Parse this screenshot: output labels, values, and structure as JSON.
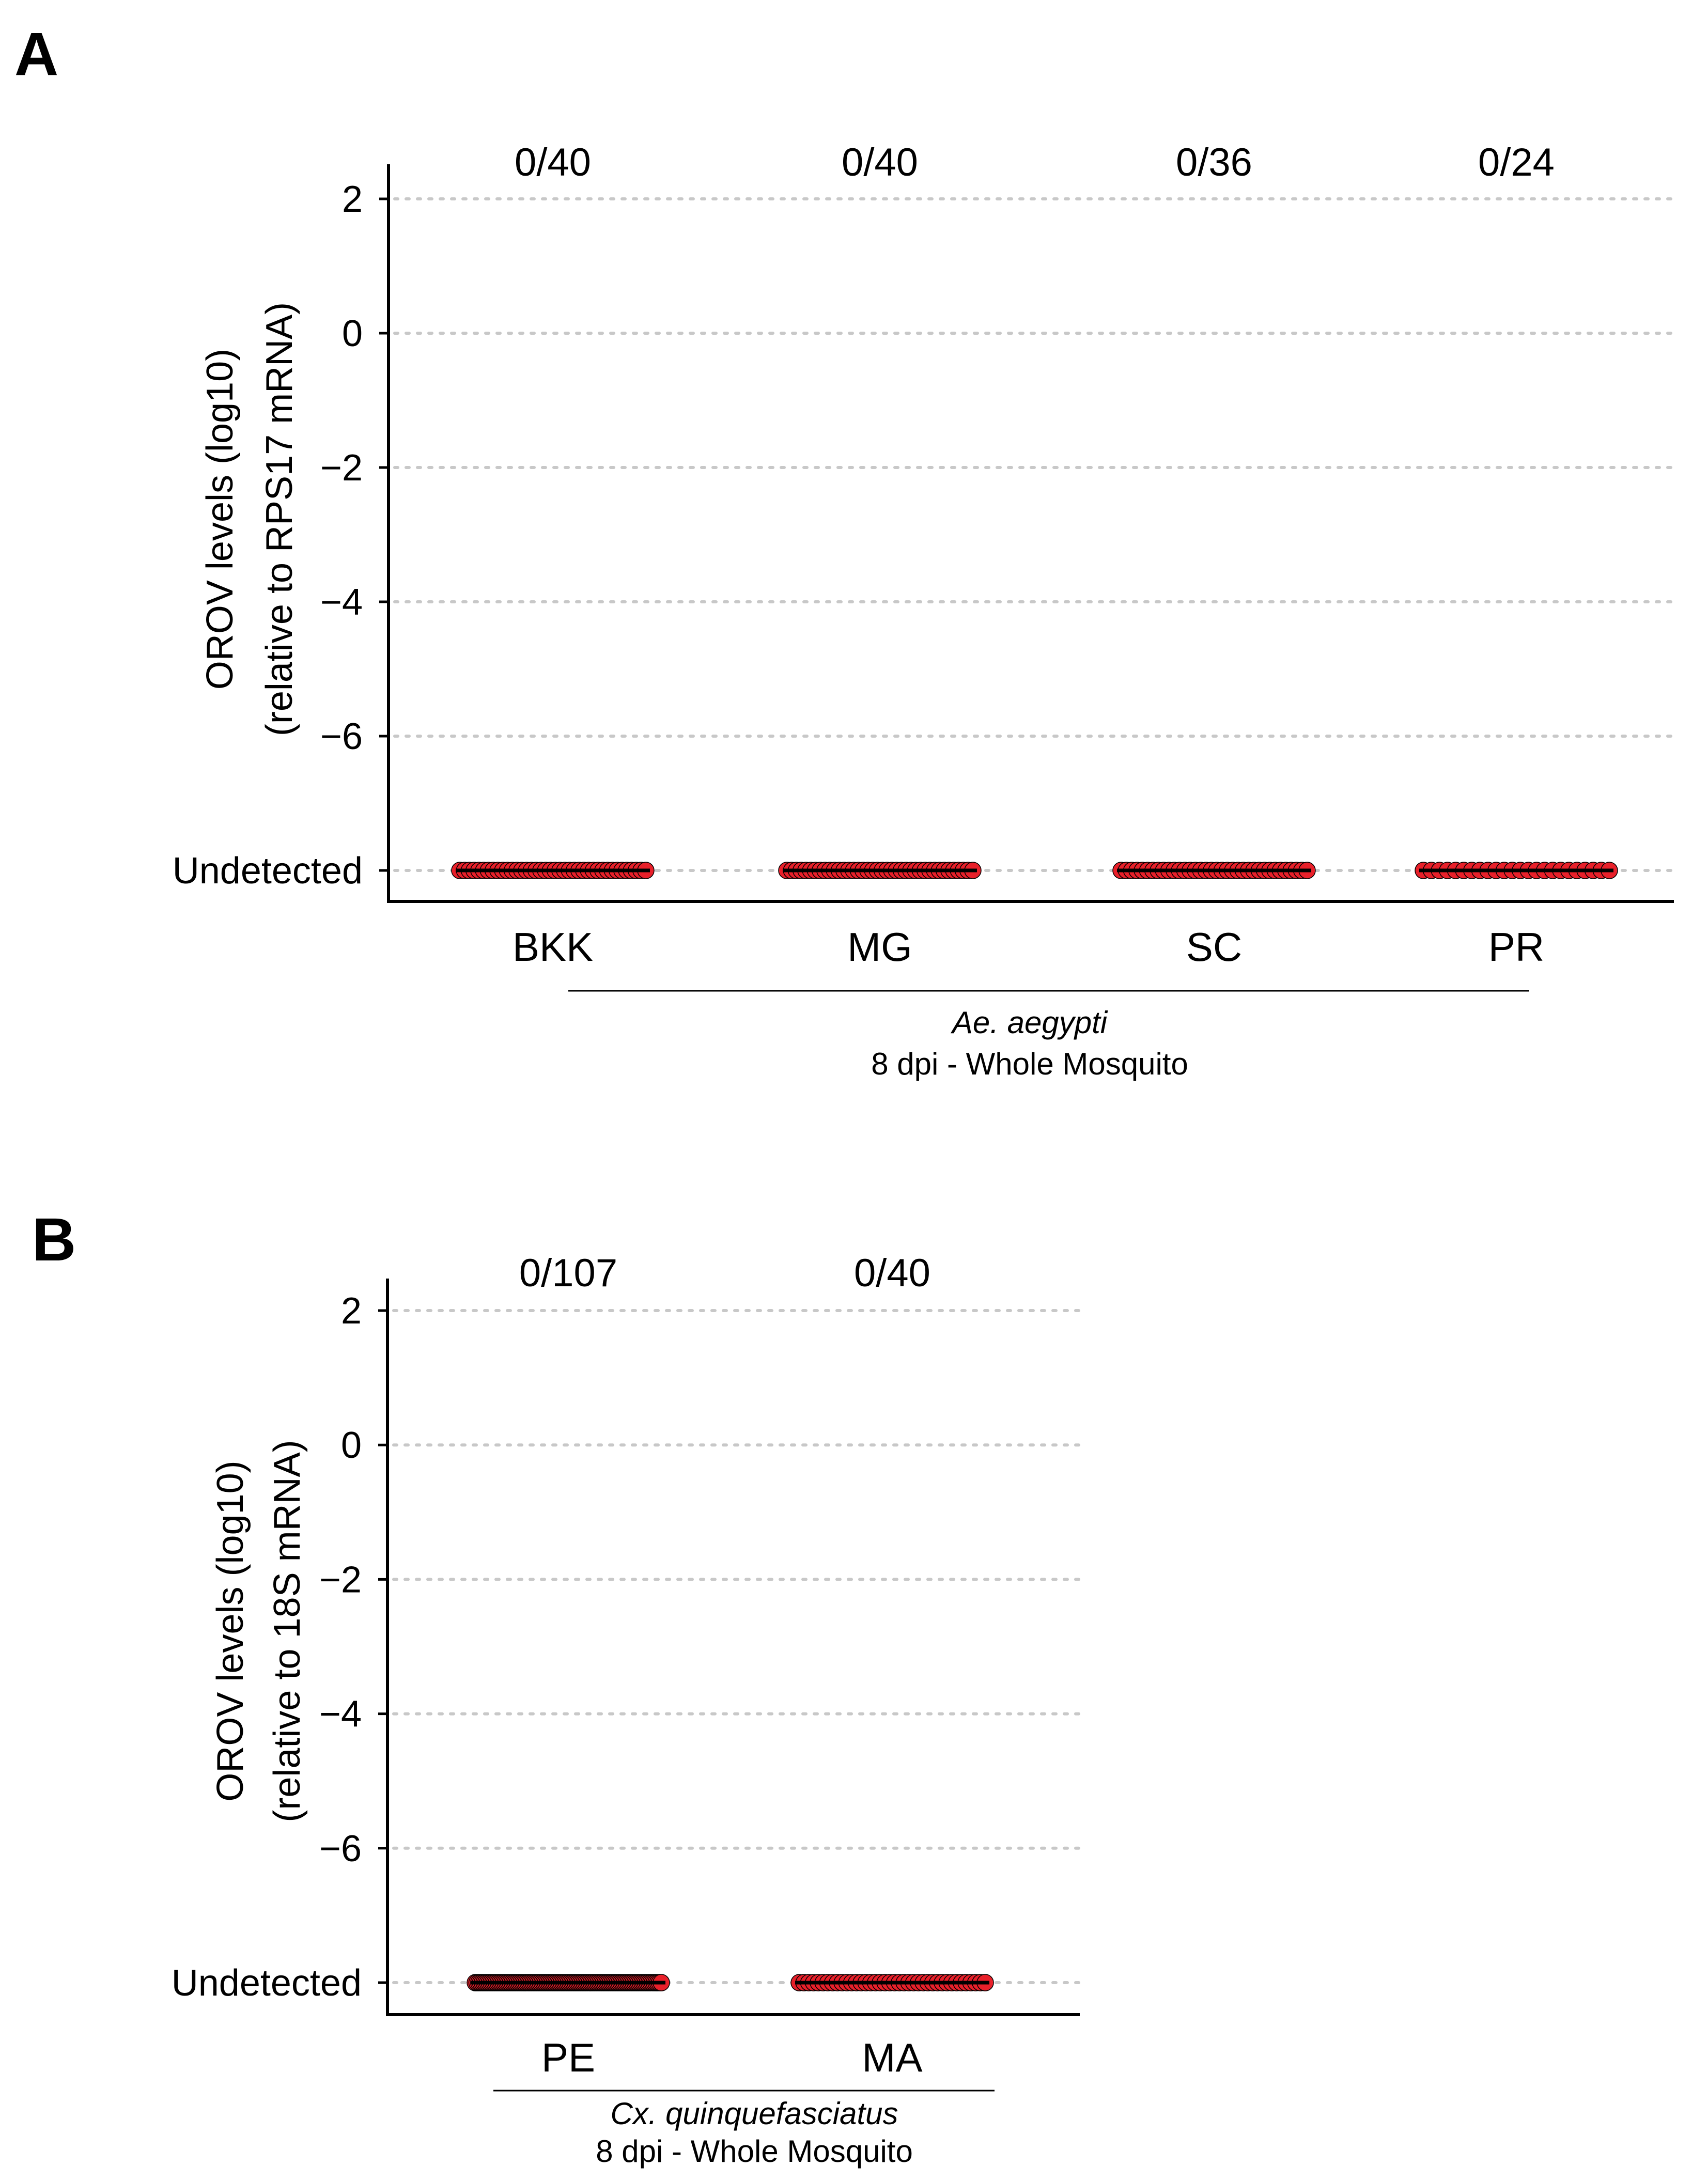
{
  "chart_data": [
    {
      "type": "scatter",
      "panel_label": "A",
      "ylabel": [
        "OROV levels (log10)",
        "(relative to RPS17 mRNA)"
      ],
      "xlabel": "",
      "ylim": [
        -8,
        2.5
      ],
      "yticks": [
        {
          "value": 2,
          "label": "2"
        },
        {
          "value": 0,
          "label": "0"
        },
        {
          "value": -2,
          "label": "−2"
        },
        {
          "value": -4,
          "label": "−4"
        },
        {
          "value": -6,
          "label": "−6"
        },
        {
          "value": -8,
          "label": "Undetected"
        }
      ],
      "grid": "horizontal dotted",
      "categories": [
        "BKK",
        "MG",
        "SC",
        "PR"
      ],
      "counts": [
        "0/40",
        "0/40",
        "0/36",
        "0/24"
      ],
      "n_points": [
        40,
        40,
        36,
        24
      ],
      "values": [
        -8,
        -8,
        -8,
        -8
      ],
      "group_label": {
        "species": "Ae. aegypti",
        "condition": "8 dpi - Whole Mosquito"
      },
      "point_color": "#e8202a",
      "median_color": "#000000"
    },
    {
      "type": "scatter",
      "panel_label": "B",
      "ylabel": [
        "OROV levels (log10)",
        "(relative to 18S mRNA)"
      ],
      "xlabel": "",
      "ylim": [
        -8,
        2.5
      ],
      "yticks": [
        {
          "value": 2,
          "label": "2"
        },
        {
          "value": 0,
          "label": "0"
        },
        {
          "value": -2,
          "label": "−2"
        },
        {
          "value": -4,
          "label": "−4"
        },
        {
          "value": -6,
          "label": "−6"
        },
        {
          "value": -8,
          "label": "Undetected"
        }
      ],
      "grid": "horizontal dotted",
      "categories": [
        "PE",
        "MA"
      ],
      "counts": [
        "0/107",
        "0/40"
      ],
      "n_points": [
        107,
        40
      ],
      "values": [
        -8,
        -8
      ],
      "group_label": {
        "species": "Cx. quinquefasciatus",
        "condition": "8 dpi - Whole Mosquito"
      },
      "point_color": "#e8202a",
      "median_color": "#000000"
    }
  ]
}
